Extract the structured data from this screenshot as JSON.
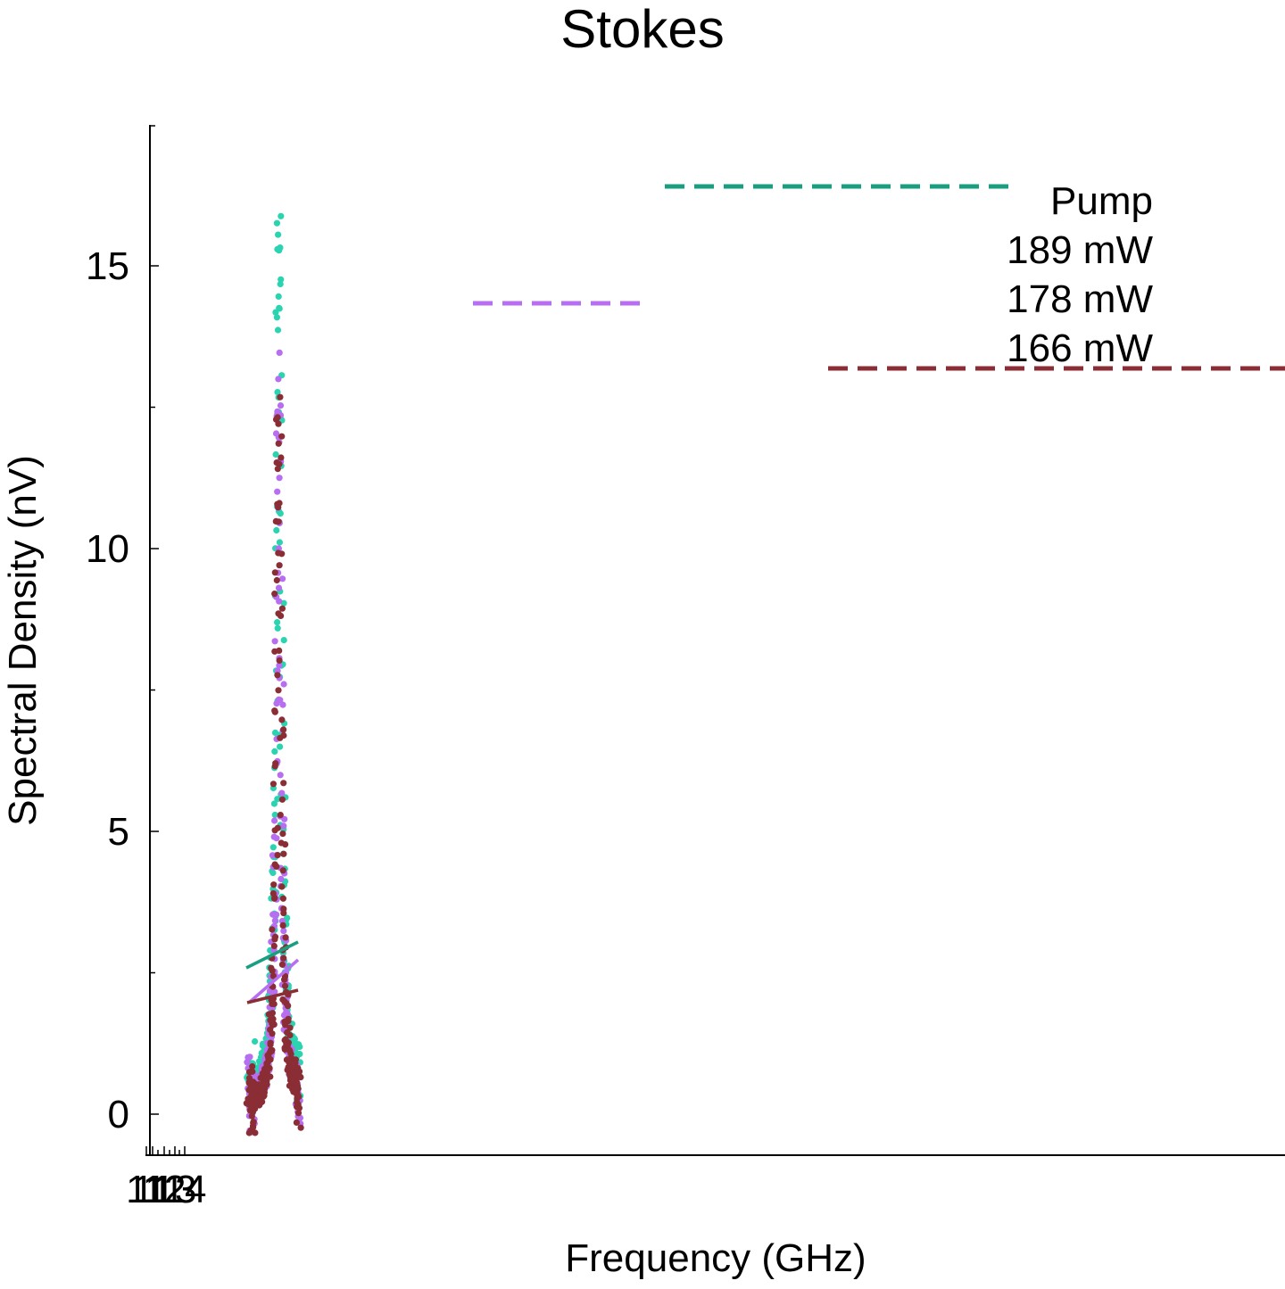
{
  "chart_data": {
    "type": "scatter",
    "title": "Stokes",
    "xlabel": "Frequency (GHz)",
    "ylabel": "Spectral Density (nV)",
    "ylim": [
      -0.7,
      17.5
    ],
    "xlim": [
      11.0,
      22.5
    ],
    "y_ticks": [
      "0",
      "5",
      "10",
      "15"
    ],
    "x_ticks": [
      "11",
      "11",
      "12",
      "13",
      "14"
    ],
    "legend": {
      "title": "Pump",
      "position": "top-right",
      "entries": [
        "189 mW",
        "178 mW",
        "166 mW"
      ]
    },
    "grid": false,
    "series": [
      {
        "name": "189 mW",
        "color": "#2ad4b0",
        "fit_color": "#1a9e80",
        "peak_x": 12.25,
        "peak_y": 15.45,
        "width": 0.07,
        "baseline": 0.45,
        "x_start": 11.95,
        "x_end": 12.45
      },
      {
        "name": "178 mW",
        "color": "#b86ef0",
        "fit_color": "#b86ef0",
        "peak_x": 12.25,
        "peak_y": 13.1,
        "width": 0.065,
        "baseline": 0.25,
        "x_start": 11.95,
        "x_end": 12.45
      },
      {
        "name": "166 mW",
        "color": "#8b2d35",
        "fit_color": "#8b2d35",
        "peak_x": 12.25,
        "peak_y": 12.05,
        "width": 0.07,
        "baseline": 0.1,
        "x_start": 11.95,
        "x_end": 12.45
      }
    ]
  }
}
